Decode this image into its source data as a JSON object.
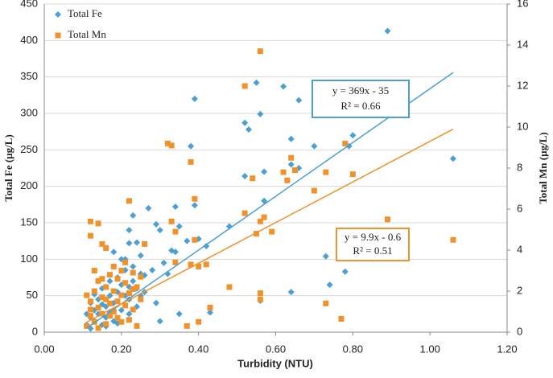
{
  "chart_data": {
    "type": "scatter",
    "xlabel": "Turbidity (NTU)",
    "ylabel": "Total Fe (µg/L)",
    "y2label": "Total Mn (µg/L)",
    "xlim": [
      0,
      1.2
    ],
    "xticks": [
      {
        "value": 0,
        "label": "0.00"
      },
      {
        "value": 0.2,
        "label": "0.20"
      },
      {
        "value": 0.4,
        "label": "0.40"
      },
      {
        "value": 0.6,
        "label": "0.60"
      },
      {
        "value": 0.8,
        "label": "0.80"
      },
      {
        "value": 1.0,
        "label": "1.00"
      },
      {
        "value": 1.2,
        "label": "1.20"
      }
    ],
    "ylim": [
      0,
      450
    ],
    "yticks": [
      0,
      50,
      100,
      150,
      200,
      250,
      300,
      350,
      400,
      450
    ],
    "y2lim": [
      0,
      16
    ],
    "y2ticks": [
      0,
      2,
      4,
      6,
      8,
      10,
      12,
      14,
      16
    ],
    "grid": true,
    "legend": "top-left",
    "series": [
      {
        "name": "Total Fe",
        "color": "#4a9fd4",
        "x": [
          0.89,
          0.39,
          0.55,
          0.62,
          0.66,
          0.52,
          0.53,
          0.56,
          0.38,
          0.64,
          0.7,
          0.8,
          0.79,
          1.06,
          0.52,
          0.57,
          0.64,
          0.66,
          0.57,
          0.39,
          0.34,
          0.27,
          0.29,
          0.3,
          0.35,
          0.4,
          0.37,
          0.42,
          0.33,
          0.34,
          0.18,
          0.25,
          0.21,
          0.22,
          0.24,
          0.22,
          0.23,
          0.48,
          0.73,
          0.74,
          0.78,
          0.64,
          0.56,
          0.43,
          0.35,
          0.3,
          0.26,
          0.28,
          0.31,
          0.32,
          0.26,
          0.29,
          0.11,
          0.12,
          0.12,
          0.13,
          0.13,
          0.14,
          0.14,
          0.15,
          0.15,
          0.16,
          0.16,
          0.17,
          0.17,
          0.18,
          0.18,
          0.19,
          0.19,
          0.2,
          0.2,
          0.21,
          0.21,
          0.22,
          0.22,
          0.23,
          0.23,
          0.24,
          0.24,
          0.25,
          0.25,
          0.12,
          0.14,
          0.16,
          0.18,
          0.2,
          0.17,
          0.13,
          0.22,
          0.19,
          0.15,
          0.11
        ],
        "values": [
          413,
          320,
          342,
          337,
          318,
          287,
          278,
          299,
          255,
          265,
          255,
          270,
          255,
          238,
          214,
          220,
          230,
          225,
          180,
          174,
          172,
          170,
          148,
          140,
          145,
          128,
          125,
          118,
          112,
          110,
          110,
          105,
          100,
          122,
          123,
          140,
          160,
          145,
          104,
          65,
          83,
          55,
          43,
          27,
          25,
          15,
          78,
          85,
          95,
          80,
          55,
          40,
          10,
          5,
          20,
          30,
          15,
          45,
          25,
          10,
          60,
          35,
          20,
          70,
          50,
          40,
          15,
          75,
          55,
          30,
          65,
          50,
          85,
          45,
          25,
          70,
          90,
          60,
          35,
          80,
          50,
          40,
          70,
          8,
          90,
          100,
          28,
          52,
          62,
          12,
          38,
          25
        ],
        "trendline": {
          "x": [
            0.11,
            1.06
          ],
          "values": [
            5.6,
            356
          ],
          "label": "y = 369x - 35",
          "r2": "R² = 0.66"
        }
      },
      {
        "name": "Total Mn",
        "color": "#f0922b",
        "axis": "y2",
        "x": [
          0.56,
          0.52,
          0.32,
          0.33,
          0.38,
          0.22,
          0.12,
          0.14,
          0.12,
          0.15,
          0.16,
          0.39,
          0.33,
          0.34,
          0.39,
          0.34,
          0.38,
          0.4,
          0.42,
          0.43,
          0.37,
          0.4,
          0.48,
          0.52,
          0.54,
          0.55,
          0.56,
          0.57,
          0.56,
          0.56,
          0.59,
          0.62,
          0.63,
          0.64,
          0.65,
          0.7,
          0.73,
          0.78,
          0.8,
          0.73,
          0.77,
          0.89,
          1.06,
          0.26,
          0.23,
          0.11,
          0.12,
          0.12,
          0.13,
          0.13,
          0.14,
          0.14,
          0.15,
          0.15,
          0.16,
          0.16,
          0.17,
          0.17,
          0.18,
          0.18,
          0.19,
          0.19,
          0.2,
          0.2,
          0.21,
          0.21,
          0.22,
          0.22,
          0.23,
          0.23,
          0.24,
          0.24,
          0.25,
          0.25,
          0.12,
          0.14,
          0.16,
          0.18,
          0.2,
          0.13,
          0.15,
          0.17,
          0.19,
          0.21,
          0.11
        ],
        "values": [
          13.7,
          12.0,
          9.2,
          9.1,
          8.3,
          6.4,
          5.4,
          5.3,
          4.7,
          4.3,
          4.1,
          6.5,
          5.4,
          4.9,
          4.5,
          3.4,
          3.3,
          3.2,
          3.3,
          1.2,
          0.3,
          0.5,
          2.2,
          5.8,
          7.5,
          4.8,
          5.4,
          5.6,
          1.9,
          1.6,
          4.9,
          7.8,
          7.4,
          8.5,
          7.9,
          6.9,
          7.8,
          9.2,
          7.7,
          1.4,
          0.65,
          5.5,
          4.5,
          4.3,
          2.1,
          0.3,
          0.8,
          1.5,
          0.5,
          2.0,
          1.2,
          2.5,
          0.9,
          1.7,
          2.2,
          0.4,
          1.4,
          2.8,
          1.0,
          2.0,
          2.6,
          0.7,
          1.8,
          3.0,
          1.3,
          2.4,
          0.6,
          1.9,
          2.9,
          1.1,
          2.2,
          0.3,
          1.6,
          2.7,
          1.1,
          0.2,
          1.6,
          3.2,
          0.5,
          3.0,
          2.6,
          0.8,
          1.5,
          3.4,
          1.8
        ],
        "trendline": {
          "x": [
            0.11,
            1.06
          ],
          "values": [
            0.49,
            9.9
          ],
          "label": "y = 9.9x - 0.6",
          "r2": "R² = 0.51"
        }
      }
    ]
  }
}
